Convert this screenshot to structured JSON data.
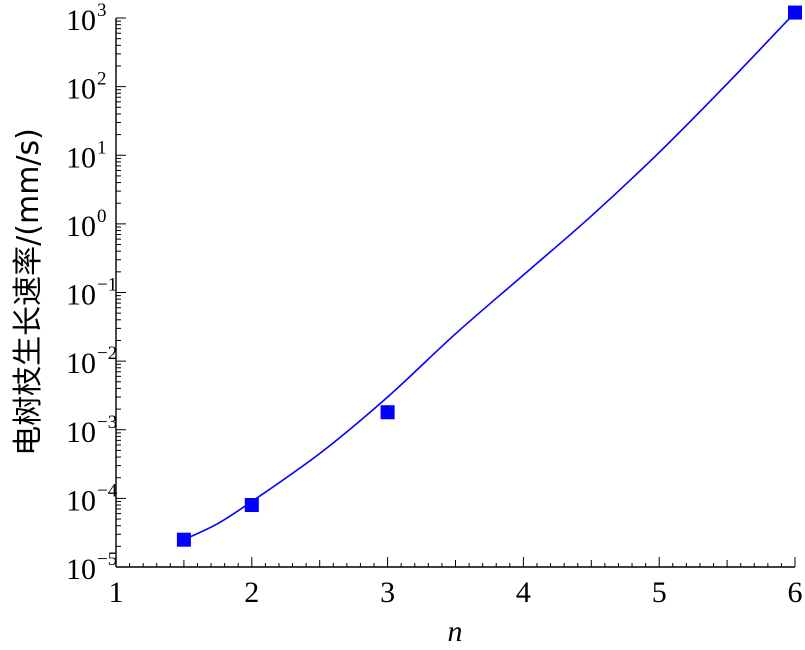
{
  "chart_data": {
    "type": "scatter",
    "xlabel": "n",
    "ylabel": "电树枝生长速率/(mm/s)",
    "xlim": [
      1,
      6
    ],
    "ylim": [
      1e-05,
      1000
    ],
    "y_scale": "log",
    "x_ticks": [
      {
        "value": 1,
        "label": "1"
      },
      {
        "value": 2,
        "label": "2"
      },
      {
        "value": 3,
        "label": "3"
      },
      {
        "value": 4,
        "label": "4"
      },
      {
        "value": 5,
        "label": "5"
      },
      {
        "value": 6,
        "label": "6"
      }
    ],
    "y_ticks": [
      {
        "value": 1e-05,
        "base": "10",
        "exp": "−5"
      },
      {
        "value": 0.0001,
        "base": "10",
        "exp": "−4"
      },
      {
        "value": 0.001,
        "base": "10",
        "exp": "−3"
      },
      {
        "value": 0.01,
        "base": "10",
        "exp": "−2"
      },
      {
        "value": 0.1,
        "base": "10",
        "exp": "−1"
      },
      {
        "value": 1,
        "base": "10",
        "exp": "0"
      },
      {
        "value": 10,
        "base": "10",
        "exp": "1"
      },
      {
        "value": 100,
        "base": "10",
        "exp": "2"
      },
      {
        "value": 1000,
        "base": "10",
        "exp": "3"
      }
    ],
    "grid": false,
    "series": [
      {
        "kind": "markers",
        "marker": "square",
        "color": "#0000ff",
        "points": [
          {
            "x": 1.5,
            "y": 2.5e-05
          },
          {
            "x": 2.0,
            "y": 8e-05
          },
          {
            "x": 3.0,
            "y": 0.0018
          },
          {
            "x": 6.0,
            "y": 1200
          }
        ]
      },
      {
        "kind": "fit-line",
        "color": "#0000ff",
        "points": [
          {
            "x": 1.5,
            "y": 2.5e-05
          },
          {
            "x": 1.75,
            "y": 4.3e-05
          },
          {
            "x": 2.0,
            "y": 9e-05
          },
          {
            "x": 2.5,
            "y": 0.00045
          },
          {
            "x": 3.0,
            "y": 0.003
          },
          {
            "x": 3.5,
            "y": 0.025
          },
          {
            "x": 4.0,
            "y": 0.18
          },
          {
            "x": 4.5,
            "y": 1.3
          },
          {
            "x": 5.0,
            "y": 11
          },
          {
            "x": 5.5,
            "y": 110
          },
          {
            "x": 6.0,
            "y": 1200
          }
        ]
      }
    ]
  }
}
